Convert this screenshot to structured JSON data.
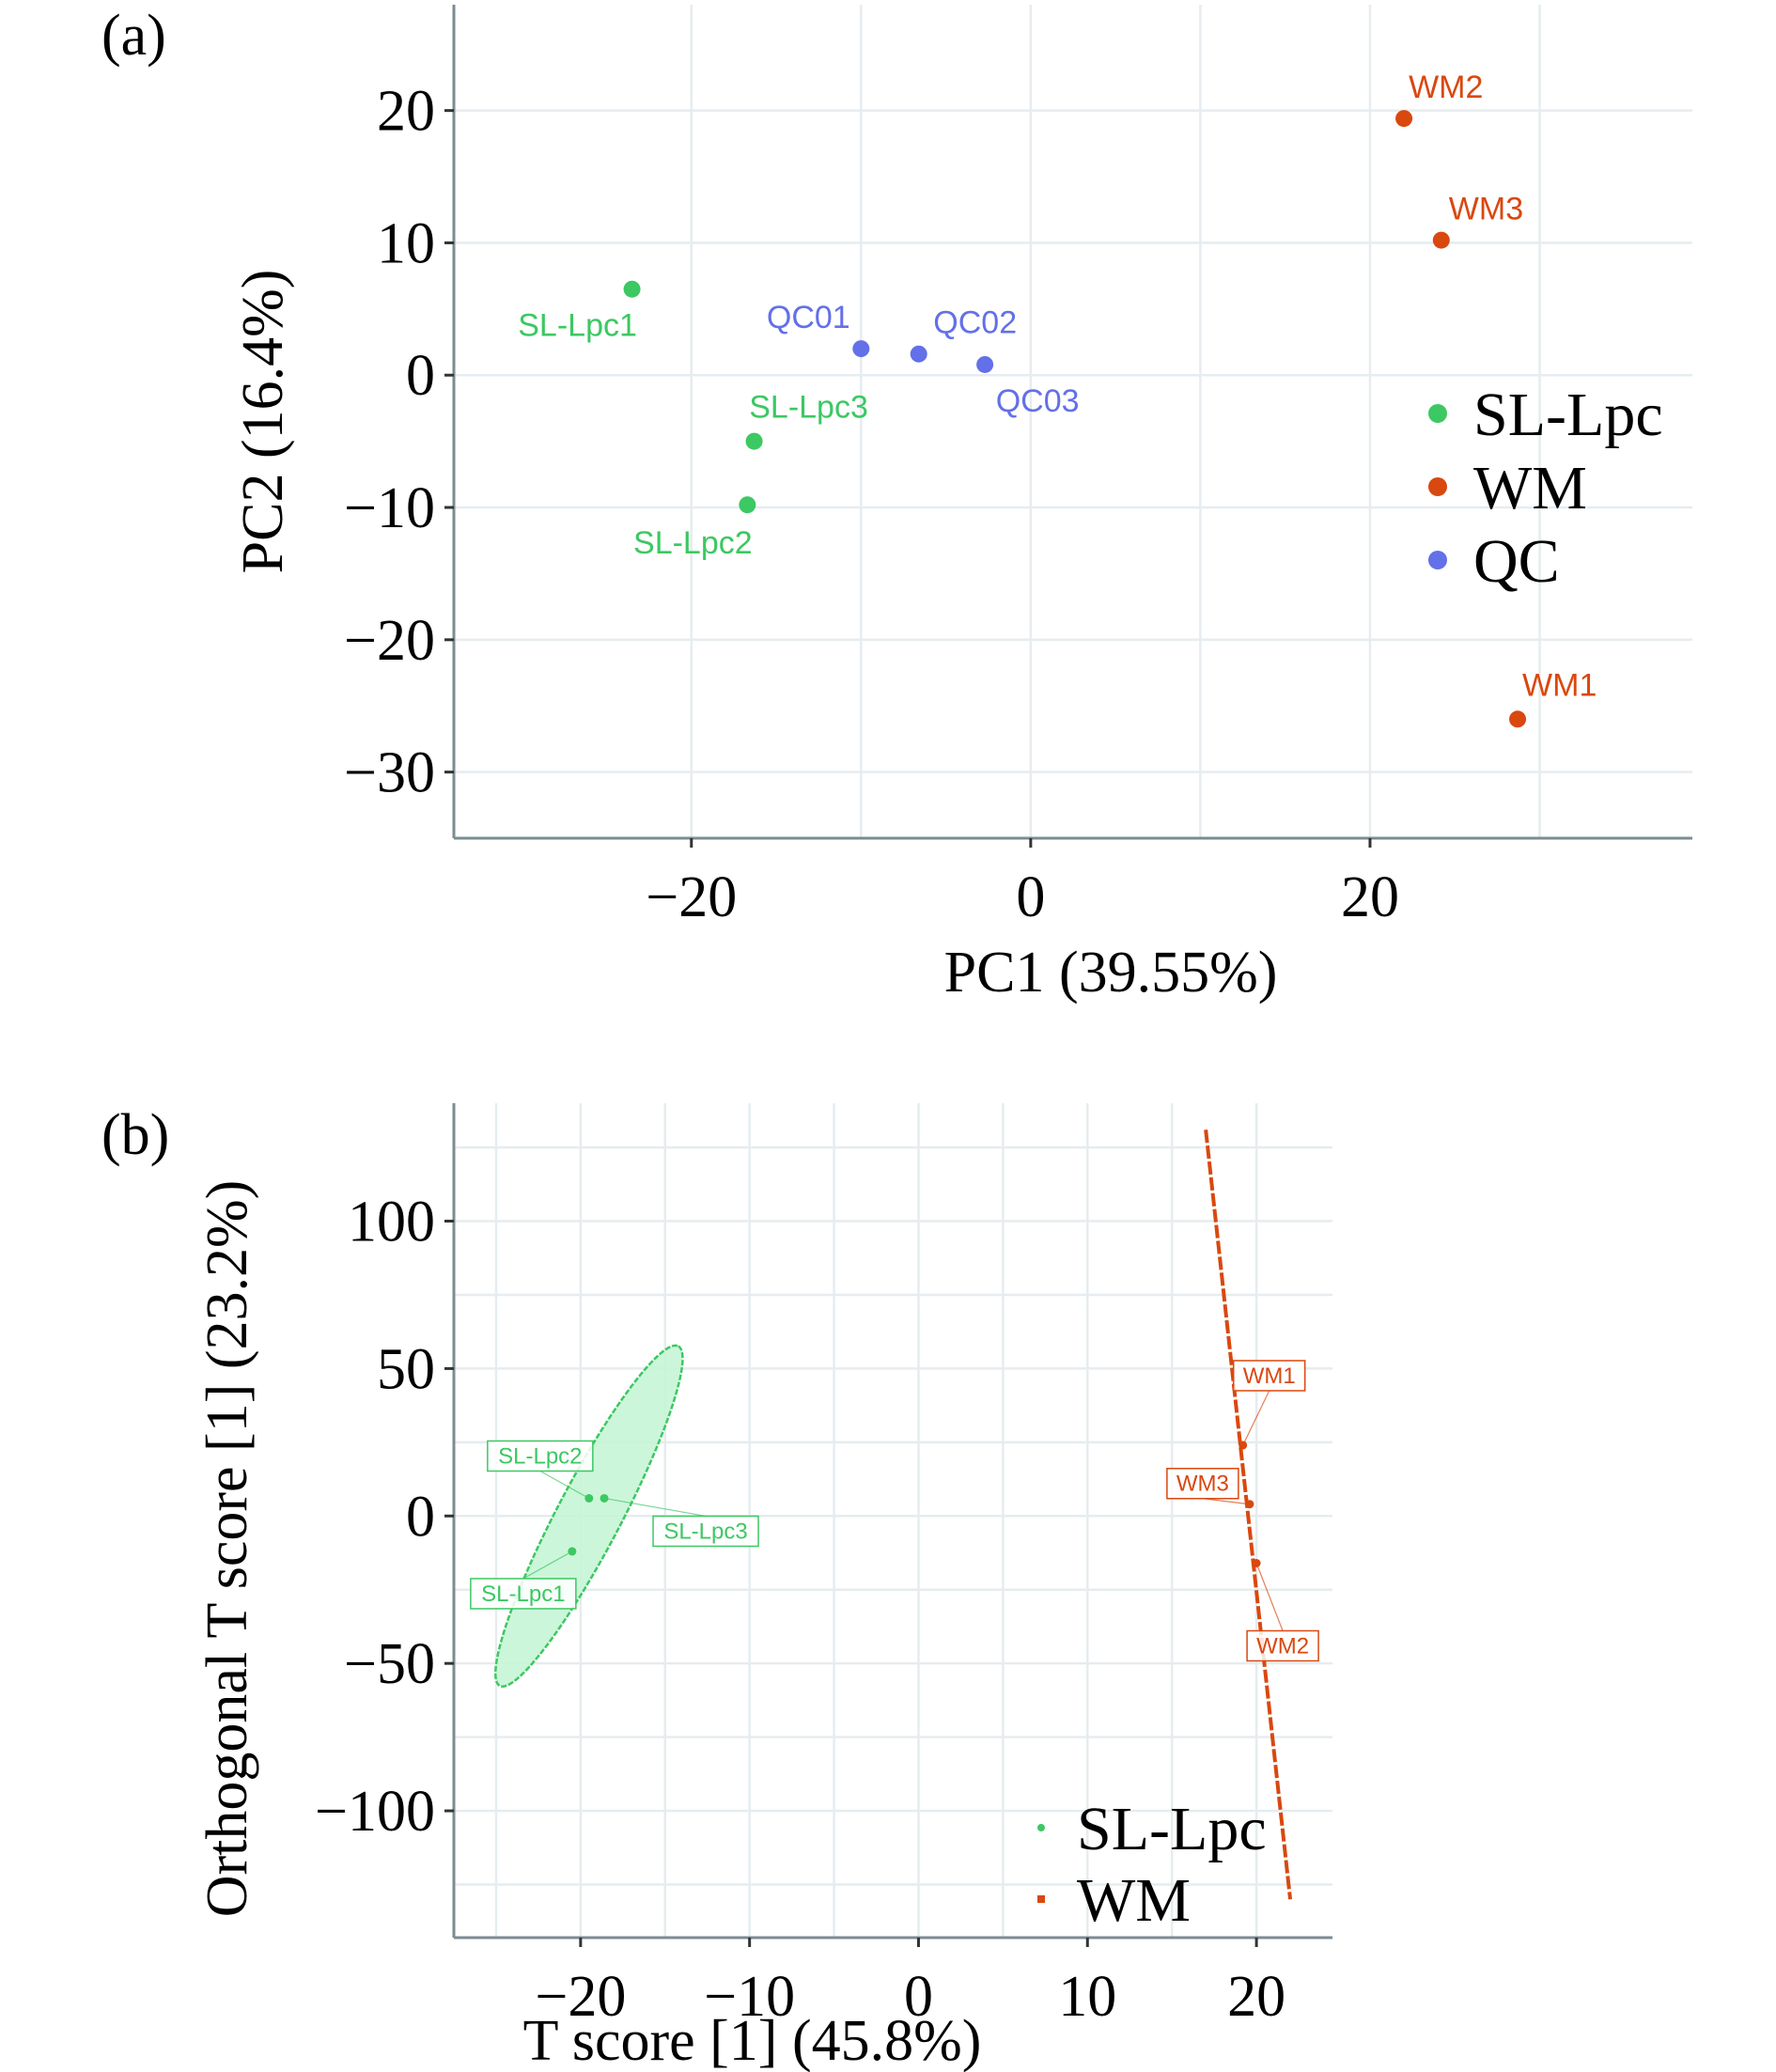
{
  "chart_data": [
    {
      "panel": "(a)",
      "type": "scatter",
      "title": "",
      "xlabel": "PC1 (39.55%)",
      "ylabel": "PC2 (16.4%)",
      "xlim": [
        -34,
        39
      ],
      "ylim": [
        -35,
        28
      ],
      "xticks": [
        -20,
        0,
        20
      ],
      "yticks": [
        20,
        10,
        0,
        -10,
        -20,
        -30
      ],
      "xtick_labels": [
        "−20",
        "0",
        "20"
      ],
      "ytick_labels": [
        "20",
        "10",
        "0",
        "−10",
        "−20",
        "−30"
      ],
      "grid": true,
      "legend_position": "right",
      "legend": [
        {
          "name": "SL-Lpc",
          "color": "#3cc862"
        },
        {
          "name": "WM",
          "color": "#d9480f"
        },
        {
          "name": "QC",
          "color": "#6370e8"
        }
      ],
      "series": [
        {
          "name": "SL-Lpc",
          "color": "#3cc862",
          "points": [
            {
              "label": "SL-Lpc1",
              "x": -23.5,
              "y": 6.5
            },
            {
              "label": "SL-Lpc2",
              "x": -16.7,
              "y": -9.8
            },
            {
              "label": "SL-Lpc3",
              "x": -16.3,
              "y": -5.0
            }
          ]
        },
        {
          "name": "WM",
          "color": "#d9480f",
          "points": [
            {
              "label": "WM1",
              "x": 28.7,
              "y": -26.0
            },
            {
              "label": "WM2",
              "x": 22.0,
              "y": 19.4
            },
            {
              "label": "WM3",
              "x": 24.2,
              "y": 10.2
            }
          ]
        },
        {
          "name": "QC",
          "color": "#6370e8",
          "points": [
            {
              "label": "QC01",
              "x": -10.0,
              "y": 2.0
            },
            {
              "label": "QC02",
              "x": -6.6,
              "y": 1.6
            },
            {
              "label": "QC03",
              "x": -2.7,
              "y": 0.8
            }
          ]
        }
      ]
    },
    {
      "panel": "(b)",
      "type": "scatter",
      "title": "",
      "xlabel": "T score [1] (45.8%)",
      "ylabel": "Orthogonal T score [1] (23.2%)",
      "xlim": [
        -27.5,
        24.5
      ],
      "ylim": [
        -143,
        140
      ],
      "xticks": [
        -20,
        -10,
        0,
        10,
        20
      ],
      "yticks": [
        100,
        50,
        0,
        -50,
        -100
      ],
      "xtick_labels": [
        "−20",
        "−10",
        "0",
        "10",
        "20"
      ],
      "ytick_labels": [
        "100",
        "50",
        "0",
        "−50",
        "−100"
      ],
      "grid": true,
      "legend_position": "bottom-right",
      "legend": [
        {
          "name": "SL-Lpc",
          "color": "#3cc862"
        },
        {
          "name": "WM",
          "color": "#d9480f"
        }
      ],
      "series": [
        {
          "name": "SL-Lpc",
          "color": "#3cc862",
          "fill": "#c6f5d6",
          "confidence_ellipse": {
            "cx": -19.6,
            "cy": 0,
            "extent_x": [
              -25,
              -14
            ],
            "extent_y": [
              -60,
              60
            ]
          },
          "points": [
            {
              "label": "SL-Lpc1",
              "x": -20.5,
              "y": -12
            },
            {
              "label": "SL-Lpc2",
              "x": -19.5,
              "y": 6
            },
            {
              "label": "SL-Lpc3",
              "x": -18.6,
              "y": 6
            }
          ]
        },
        {
          "name": "WM",
          "color": "#d9480f",
          "confidence_ellipse": {
            "from": [
              17.0,
              131
            ],
            "to": [
              22.0,
              -130
            ]
          },
          "points": [
            {
              "label": "WM1",
              "x": 19.2,
              "y": 24
            },
            {
              "label": "WM2",
              "x": 20.0,
              "y": -16
            },
            {
              "label": "WM3",
              "x": 19.6,
              "y": 4
            }
          ]
        }
      ]
    }
  ]
}
